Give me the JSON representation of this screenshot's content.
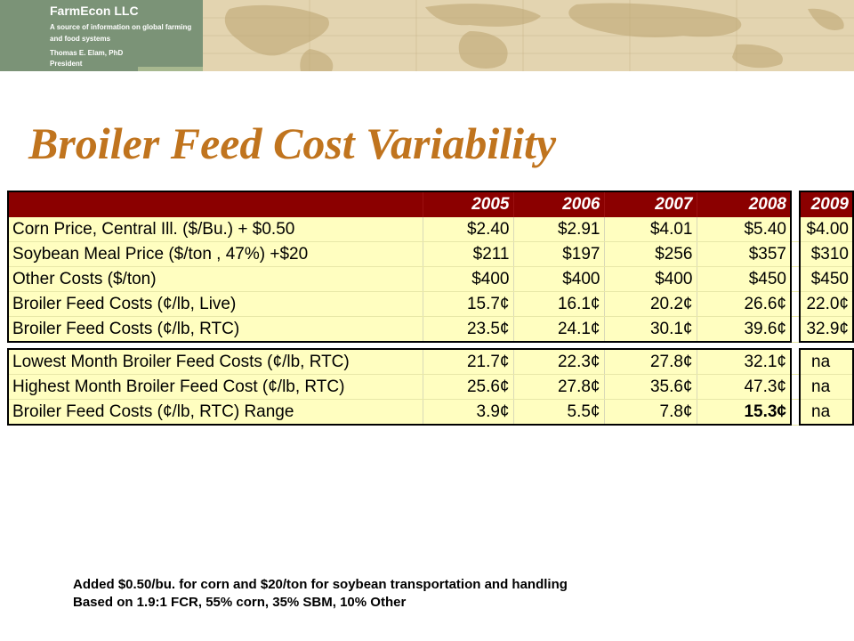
{
  "header": {
    "company": "FarmEcon LLC",
    "tagline": "A source of information on global farming and food systems",
    "person": "Thomas E. Elam, PhD",
    "role": "President"
  },
  "title": "Broiler Feed Cost Variability",
  "table": {
    "years": [
      "2005",
      "2006",
      "2007",
      "2008",
      "2009"
    ],
    "group1": [
      {
        "label": "Corn Price, Central Ill. ($/Bu.) + $0.50",
        "values": [
          "$2.40",
          "$2.91",
          "$4.01",
          "$5.40",
          "$4.00"
        ]
      },
      {
        "label": "Soybean Meal Price ($/ton , 47%) +$20",
        "values": [
          "$211",
          "$197",
          "$256",
          "$357",
          "$310"
        ]
      },
      {
        "label": "Other Costs ($/ton)",
        "values": [
          "$400",
          "$400",
          "$400",
          "$450",
          "$450"
        ]
      },
      {
        "label": "Broiler Feed Costs (¢/lb, Live)",
        "values": [
          "15.7¢",
          "16.1¢",
          "20.2¢",
          "26.6¢",
          "22.0¢"
        ]
      },
      {
        "label": "Broiler Feed Costs (¢/lb, RTC)",
        "values": [
          "23.5¢",
          "24.1¢",
          "30.1¢",
          "39.6¢",
          "32.9¢"
        ]
      }
    ],
    "group2": [
      {
        "label": "Lowest Month Broiler Feed Costs (¢/lb, RTC)",
        "values": [
          "21.7¢",
          "22.3¢",
          "27.8¢",
          "32.1¢",
          "na"
        ]
      },
      {
        "label": "Highest Month Broiler Feed Cost (¢/lb, RTC)",
        "values": [
          "25.6¢",
          "27.8¢",
          "35.6¢",
          "47.3¢",
          "na"
        ]
      },
      {
        "label": "Broiler Feed Costs (¢/lb, RTC) Range",
        "values": [
          "3.9¢",
          "5.5¢",
          "7.8¢",
          "15.3¢",
          "na"
        ]
      }
    ]
  },
  "notes": [
    "Added $0.50/bu. for corn and $20/ton for soybean transportation and handling",
    "Based on 1.9:1 FCR, 55% corn, 35% SBM, 10% Other"
  ]
}
